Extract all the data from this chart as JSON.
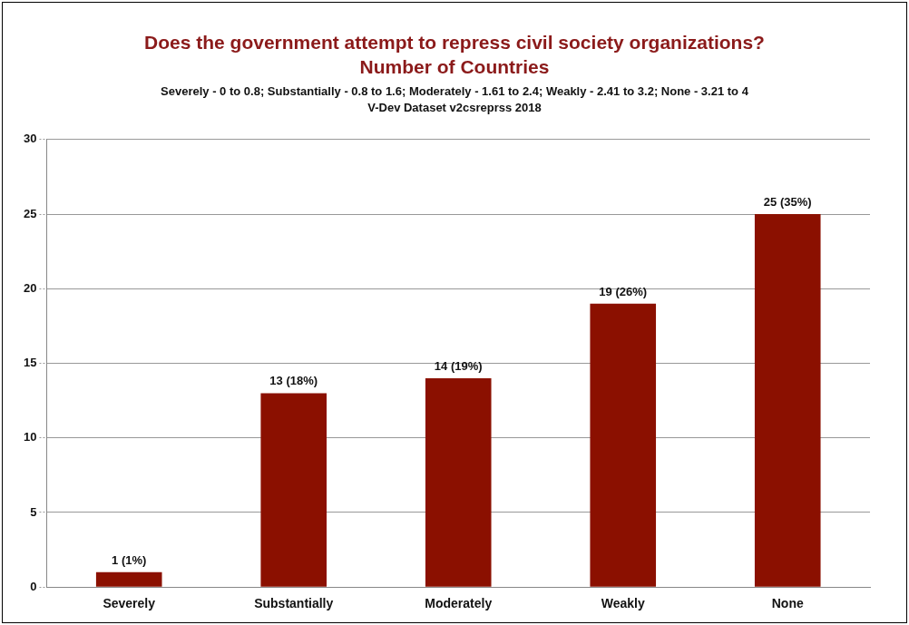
{
  "chart_data": {
    "type": "bar",
    "title": "Does the government attempt to repress civil society organizations?\nNumber of Countries",
    "subtitle": "Severely - 0 to 0.8; Substantially - 0.8 to 1.6; Moderately - 1.61 to 2.4; Weakly - 2.41 to 3.2; None - 3.21 to 4",
    "annotations": [
      "V-Dev Dataset v2csreprss 2018"
    ],
    "categories": [
      "Severely",
      "Substantially",
      "Moderately",
      "Weakly",
      "None"
    ],
    "values": [
      1,
      13,
      14,
      19,
      25
    ],
    "value_labels": [
      "1 (1%)",
      "13 (18%)",
      "14 (19%)",
      "19 (26%)",
      "25 (35%)"
    ],
    "color": "#8b1000",
    "ylim": [
      0,
      30
    ],
    "yticks": [
      0,
      5,
      10,
      15,
      20,
      25,
      30
    ],
    "grid": "y",
    "legend": false
  }
}
